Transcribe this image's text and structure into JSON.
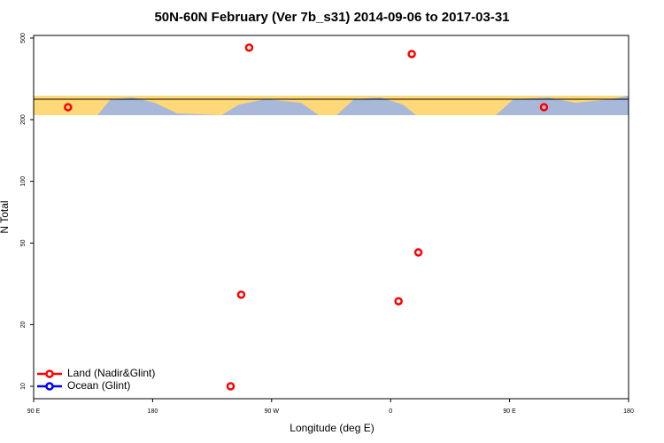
{
  "chart_data": {
    "type": "scatter",
    "title": "50N-60N February (Ver 7b_s31)   2014-09-06 to 2017-03-31",
    "x_label": "Longitude (deg E)",
    "y_label": "N Total",
    "xlim": [
      90,
      540
    ],
    "xticks": [
      {
        "value": 90,
        "label": "90 E"
      },
      {
        "value": 180,
        "label": "180"
      },
      {
        "value": 270,
        "label": "90 W"
      },
      {
        "value": 360,
        "label": "0"
      },
      {
        "value": 450,
        "label": "90 E"
      },
      {
        "value": 540,
        "label": "180"
      }
    ],
    "ylim": [
      8.7,
      515
    ],
    "log_y": true,
    "yticks": [
      10,
      20,
      50,
      100,
      200,
      500
    ],
    "legend": "lower left",
    "series": [
      {
        "name": "Land (Nadir&Glint)",
        "color": "#ff0000",
        "x": [
          116,
          253,
          376,
          476,
          381,
          247,
          366,
          239
        ],
        "values": [
          230,
          449,
          418,
          230,
          45,
          28,
          26,
          10
        ]
      },
      {
        "name": "Ocean (Glint)",
        "color": "#0000ff",
        "x": [],
        "values": []
      }
    ]
  }
}
